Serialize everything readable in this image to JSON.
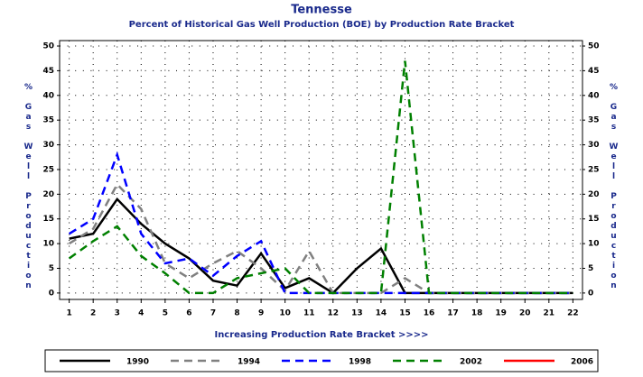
{
  "chart_data": {
    "type": "line",
    "title": "Tennesse",
    "subtitle": "Percent of Historical Gas Well Production (BOE) by Production Rate Bracket",
    "xlabel": "Increasing Production Rate Bracket >>>>",
    "ylabel": "% Gas Well Production",
    "x": [
      1,
      2,
      3,
      4,
      5,
      6,
      7,
      8,
      9,
      10,
      11,
      12,
      13,
      14,
      15,
      16,
      17,
      18,
      19,
      20,
      21,
      22
    ],
    "xlim": [
      0.6,
      22.4
    ],
    "xticks": [
      1,
      2,
      3,
      4,
      5,
      6,
      7,
      8,
      9,
      10,
      11,
      12,
      13,
      14,
      15,
      16,
      17,
      18,
      19,
      20,
      21,
      22
    ],
    "ylim": [
      -1.3,
      51.1
    ],
    "yticks": [
      0,
      5,
      10,
      15,
      20,
      25,
      30,
      35,
      40,
      45,
      50
    ],
    "grid": true,
    "legend": "bottom",
    "series": [
      {
        "name": "1990",
        "color": "#000000",
        "style": "solid",
        "values": [
          11,
          12,
          19,
          14,
          10,
          7,
          2.5,
          1.5,
          8,
          1,
          3,
          0,
          5,
          9,
          0,
          0,
          0,
          0,
          0,
          0,
          0,
          0
        ]
      },
      {
        "name": "1994",
        "color": "#808080",
        "style": "dashed",
        "values": [
          10,
          13,
          22,
          17,
          6,
          3,
          6,
          8.5,
          5,
          0.5,
          8.5,
          0,
          0,
          0,
          3,
          0,
          0,
          0,
          0,
          0,
          0,
          0
        ]
      },
      {
        "name": "1998",
        "color": "#0000ff",
        "style": "dashed",
        "values": [
          12,
          15,
          28,
          12,
          6,
          7,
          3.5,
          7.5,
          10.5,
          0,
          0,
          0,
          0,
          0,
          0,
          0,
          0,
          0,
          0,
          0,
          0,
          0
        ]
      },
      {
        "name": "2002",
        "color": "#008000",
        "style": "dashed",
        "values": [
          7,
          10.5,
          13.5,
          7.5,
          4,
          0,
          0,
          3,
          4,
          5,
          0,
          0,
          0,
          0,
          47,
          0,
          0,
          0,
          0,
          0,
          0,
          0
        ]
      },
      {
        "name": "2006",
        "color": "#ff0000",
        "style": "solid",
        "values": [
          null,
          null,
          null,
          null,
          null,
          null,
          null,
          null,
          null,
          null,
          null,
          null,
          null,
          null,
          null,
          null,
          null,
          null,
          null,
          null,
          null,
          null
        ]
      }
    ]
  }
}
